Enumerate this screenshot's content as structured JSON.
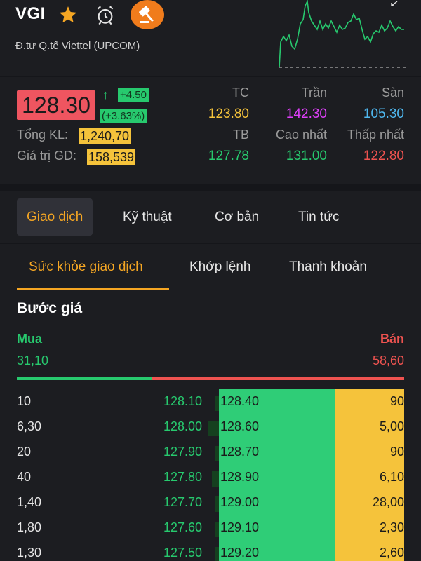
{
  "header": {
    "symbol": "VGI",
    "company": "Đ.tư Q.tế Viettel (UPCOM)",
    "icons": [
      "star-icon",
      "alarm-clock-icon",
      "auction-hammer-icon"
    ]
  },
  "quote": {
    "price": "128.30",
    "change": "+4.50",
    "change_pct": "(+3.63%)",
    "volume_label": "Tổng KL:",
    "volume": "1,240,70",
    "value_label": "Giá trị GD:",
    "value": "158,539",
    "tc_label": "TC",
    "tc": "123.80",
    "tran_label": "Trần",
    "tran": "142.30",
    "san_label": "Sàn",
    "san": "105.30",
    "tb_label": "TB",
    "tb": "127.78",
    "cao_label": "Cao nhất",
    "cao": "131.00",
    "thap_label": "Thấp nhất",
    "thap": "122.80"
  },
  "colors": {
    "up": "#27c96e",
    "down": "#ef5350",
    "ref": "#f5c33b",
    "ceiling": "#e040fb",
    "floor": "#4fb8f0",
    "accent": "#f5a623"
  },
  "tabs": [
    "Giao dịch",
    "Kỹ thuật",
    "Cơ bản",
    "Tin tức"
  ],
  "subtabs": [
    "Sức khỏe giao dịch",
    "Khớp lệnh",
    "Thanh khoản"
  ],
  "orderbook": {
    "title": "Bước giá",
    "buy_label": "Mua",
    "sell_label": "Bán",
    "buy_total": "31,10",
    "sell_total": "58,60",
    "buy_ratio": 0.347,
    "rows": [
      {
        "bid_qty": "10",
        "bid": "128.10",
        "ask": "128.40",
        "ask_qty": "90",
        "bid_fill": 0.1
      },
      {
        "bid_qty": "6,30",
        "bid": "128.00",
        "ask": "128.60",
        "ask_qty": "5,00",
        "bid_fill": 0.63
      },
      {
        "bid_qty": "20",
        "bid": "127.90",
        "ask": "128.70",
        "ask_qty": "90",
        "bid_fill": 0.2
      },
      {
        "bid_qty": "40",
        "bid": "127.80",
        "ask": "128.90",
        "ask_qty": "6,10",
        "bid_fill": 0.4
      },
      {
        "bid_qty": "1,40",
        "bid": "127.70",
        "ask": "129.00",
        "ask_qty": "28,00",
        "bid_fill": 0.14
      },
      {
        "bid_qty": "1,80",
        "bid": "127.60",
        "ask": "129.10",
        "ask_qty": "2,30",
        "bid_fill": 0.18
      },
      {
        "bid_qty": "1,30",
        "bid": "127.50",
        "ask": "129.20",
        "ask_qty": "2,60",
        "bid_fill": 0.13
      }
    ]
  }
}
